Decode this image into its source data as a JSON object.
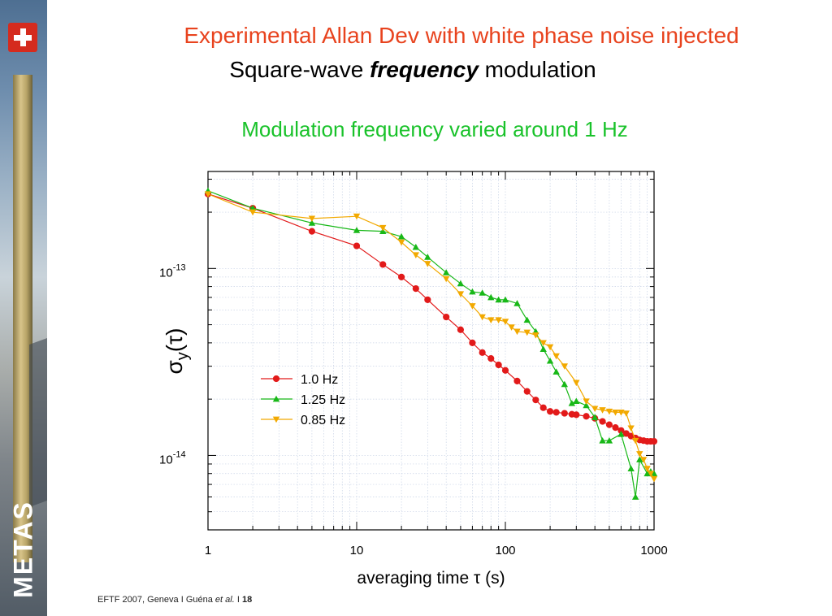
{
  "brand": "METAS",
  "header": {
    "title": "Experimental Allan Dev with white phase noise injected",
    "subtitle_pre": "Square-wave ",
    "subtitle_em": "frequency",
    "subtitle_post": " modulation"
  },
  "colors": {
    "title": "#e8431e",
    "subtitle": "#19c22a",
    "series": [
      "#e21a1a",
      "#18b818",
      "#f2a900"
    ]
  },
  "footer": {
    "text": "EFTF 2007, Geneva I  Guéna ",
    "em": "et al.",
    "sep": "  I  ",
    "page": "18"
  },
  "chart_data": {
    "type": "line",
    "title": "Modulation frequency varied around 1 Hz",
    "xlabel": "averaging time τ (s)",
    "ylabel_main": "σ",
    "ylabel_sub": "y",
    "ylabel_paren": "(τ)",
    "xscale": "log",
    "yscale": "log",
    "xlim": [
      1,
      1000
    ],
    "ylim": [
      4e-15,
      3.3e-13
    ],
    "grid": true,
    "legend_position": "center-left",
    "x_ticks": [
      {
        "v": 1,
        "label": "1"
      },
      {
        "v": 10,
        "label": "10"
      },
      {
        "v": 100,
        "label": "100"
      },
      {
        "v": 1000,
        "label": "1000"
      }
    ],
    "y_ticks": [
      {
        "v": 1e-13,
        "base": "10",
        "exp": "-13"
      },
      {
        "v": 1e-14,
        "base": "10",
        "exp": "-14"
      }
    ],
    "series": [
      {
        "name": "1.0 Hz",
        "marker": "circle",
        "x": [
          1,
          2,
          5,
          10,
          15,
          20,
          25,
          30,
          40,
          50,
          60,
          70,
          80,
          90,
          100,
          120,
          140,
          160,
          180,
          200,
          220,
          250,
          280,
          300,
          350,
          400,
          450,
          500,
          550,
          600,
          650,
          700,
          750,
          800,
          850,
          900,
          950,
          1000
        ],
        "y": [
          2.5e-13,
          2.1e-13,
          1.58e-13,
          1.32e-13,
          1.05e-13,
          9e-14,
          7.8e-14,
          6.8e-14,
          5.5e-14,
          4.7e-14,
          4e-14,
          3.55e-14,
          3.3e-14,
          3.05e-14,
          2.85e-14,
          2.5e-14,
          2.2e-14,
          1.98e-14,
          1.8e-14,
          1.72e-14,
          1.7e-14,
          1.68e-14,
          1.66e-14,
          1.65e-14,
          1.62e-14,
          1.58e-14,
          1.52e-14,
          1.46e-14,
          1.41e-14,
          1.36e-14,
          1.31e-14,
          1.27e-14,
          1.24e-14,
          1.21e-14,
          1.2e-14,
          1.19e-14,
          1.19e-14,
          1.19e-14
        ]
      },
      {
        "name": "1.25 Hz",
        "marker": "triangle-up",
        "x": [
          1,
          2,
          5,
          10,
          15,
          20,
          25,
          30,
          40,
          50,
          60,
          70,
          80,
          90,
          100,
          120,
          140,
          160,
          180,
          200,
          220,
          250,
          280,
          300,
          350,
          400,
          450,
          500,
          600,
          700,
          750,
          800,
          900,
          950,
          1000
        ],
        "y": [
          2.6e-13,
          2.1e-13,
          1.75e-13,
          1.6e-13,
          1.58e-13,
          1.48e-13,
          1.3e-13,
          1.15e-13,
          9.5e-14,
          8.3e-14,
          7.5e-14,
          7.4e-14,
          7e-14,
          6.8e-14,
          6.8e-14,
          6.5e-14,
          5.3e-14,
          4.6e-14,
          3.7e-14,
          3.2e-14,
          2.8e-14,
          2.4e-14,
          1.9e-14,
          1.95e-14,
          1.85e-14,
          1.6e-14,
          1.2e-14,
          1.2e-14,
          1.3e-14,
          8.5e-15,
          6e-15,
          9.5e-15,
          8e-15,
          8.2e-15,
          8e-15
        ]
      },
      {
        "name": "0.85 Hz",
        "marker": "triangle-down",
        "x": [
          1,
          2,
          5,
          10,
          15,
          20,
          25,
          30,
          40,
          50,
          60,
          70,
          80,
          90,
          100,
          110,
          120,
          140,
          160,
          180,
          200,
          220,
          250,
          300,
          350,
          400,
          450,
          500,
          550,
          600,
          650,
          700,
          750,
          800,
          850,
          900,
          950,
          1000
        ],
        "y": [
          2.5e-13,
          2e-13,
          1.85e-13,
          1.9e-13,
          1.65e-13,
          1.38e-13,
          1.18e-13,
          1.06e-13,
          8.8e-14,
          7.3e-14,
          6.3e-14,
          5.5e-14,
          5.3e-14,
          5.3e-14,
          5.2e-14,
          4.85e-14,
          4.6e-14,
          4.55e-14,
          4.4e-14,
          4e-14,
          3.8e-14,
          3.4e-14,
          3e-14,
          2.45e-14,
          1.95e-14,
          1.78e-14,
          1.75e-14,
          1.72e-14,
          1.7e-14,
          1.7e-14,
          1.68e-14,
          1.4e-14,
          1.2e-14,
          1.02e-14,
          9.5e-15,
          8.5e-15,
          8e-15,
          7.5e-15
        ]
      }
    ]
  }
}
